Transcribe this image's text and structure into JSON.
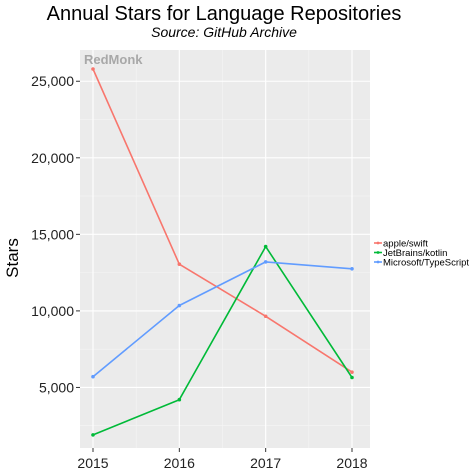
{
  "chart_data": {
    "type": "line",
    "title": "Annual Stars for Language Repositories",
    "subtitle": "Source: GitHub Archive",
    "watermark": "RedMonk",
    "xlabel": "",
    "ylabel": "Stars",
    "x": [
      2015,
      2016,
      2017,
      2018
    ],
    "x_tick_labels": [
      "2015",
      "2016",
      "2017",
      "2018"
    ],
    "xlim": [
      2015,
      2018
    ],
    "ylim": [
      0,
      27000
    ],
    "y_ticks": [
      5000,
      10000,
      15000,
      20000,
      25000
    ],
    "y_tick_labels": [
      "5,000",
      "10,000",
      "15,000",
      "20,000",
      "25,000"
    ],
    "grid": true,
    "legend_position": "right",
    "series": [
      {
        "name": "apple/swift",
        "color": "#f8766d",
        "values": [
          25800,
          13050,
          9650,
          6000
        ]
      },
      {
        "name": "JetBrains/kotlin",
        "color": "#00ba38",
        "values": [
          1900,
          4200,
          14200,
          5650
        ]
      },
      {
        "name": "Microsoft/TypeScript",
        "color": "#619cff",
        "values": [
          5700,
          10350,
          13200,
          12750
        ]
      }
    ]
  }
}
